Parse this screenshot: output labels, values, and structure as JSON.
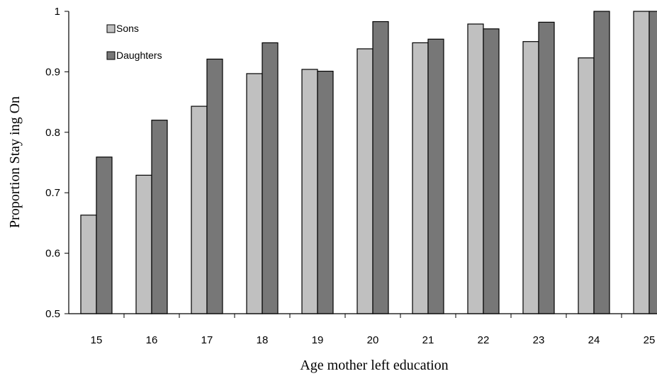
{
  "chart_data": {
    "type": "bar",
    "title": "",
    "xlabel": "Age mother left education",
    "ylabel": "Proportion Stay ing On",
    "categories": [
      "15",
      "16",
      "17",
      "18",
      "19",
      "20",
      "21",
      "22",
      "23",
      "24",
      "25"
    ],
    "series": [
      {
        "name": "Sons",
        "color": "#c0c0c0",
        "values": [
          0.663,
          0.729,
          0.843,
          0.897,
          0.904,
          0.938,
          0.948,
          0.979,
          0.95,
          0.923,
          1.0
        ]
      },
      {
        "name": "Daughters",
        "color": "#777777",
        "values": [
          0.759,
          0.82,
          0.921,
          0.948,
          0.901,
          0.983,
          0.954,
          0.971,
          0.982,
          1.0,
          1.0
        ]
      }
    ],
    "ylim": [
      0.5,
      1.0
    ],
    "yticks": [
      "0.5",
      "0.6",
      "0.7",
      "0.8",
      "0.9",
      "1"
    ],
    "grid": false,
    "legend_position": "top-left"
  }
}
